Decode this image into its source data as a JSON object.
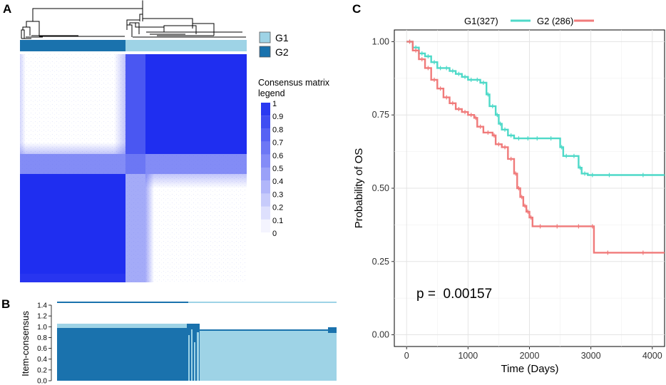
{
  "colors": {
    "g1_light": "#9ed3e6",
    "g2_dark": "#1a72ad",
    "consensus_blue": "#1f2ef0",
    "km_g1": "#4ed9c8",
    "km_g2": "#f07a7a",
    "grid": "#e4e4e4",
    "panel_bg": "#ffffff"
  },
  "panels": {
    "a": {
      "letter": "A"
    },
    "b": {
      "letter": "B"
    },
    "c": {
      "letter": "C"
    }
  },
  "heatmap": {
    "groups": [
      {
        "name": "G1",
        "color": "#9ed3e6"
      },
      {
        "name": "G2",
        "color": "#1a72ad"
      }
    ],
    "legend_title_1": "Consensus matrix",
    "legend_title_2": "legend",
    "legend_ticks": [
      "1",
      "0.9",
      "0.8",
      "0.7",
      "0.6",
      "0.5",
      "0.4",
      "0.3",
      "0.2",
      "0.1",
      "0"
    ],
    "legend_values": [
      1.0,
      0.9,
      0.8,
      0.7,
      0.6,
      0.5,
      0.4,
      0.3,
      0.2,
      0.1,
      0.0
    ],
    "order_top_to_bottom": [
      "G2",
      "G1"
    ]
  },
  "item_consensus": {
    "ylabel": "Item-consensus",
    "ticks": [
      "1.4",
      "1.2",
      "1.0",
      "0.8",
      "0.6",
      "0.4",
      "0.2",
      "0.0"
    ],
    "tick_values": [
      1.4,
      1.2,
      1.0,
      0.8,
      0.6,
      0.4,
      0.2,
      0.0
    ],
    "ylim": [
      0,
      1.4
    ]
  },
  "chart_data": {
    "type": "line",
    "title": "",
    "xlabel": "Time (Days)",
    "ylabel": "Probability of OS",
    "xlim": [
      -200,
      4200
    ],
    "ylim": [
      -0.04,
      1.04
    ],
    "x_ticks": [
      0,
      1000,
      2000,
      3000,
      4000
    ],
    "x_tick_labels": [
      "0",
      "1000",
      "2000",
      "3000",
      "4000"
    ],
    "y_ticks": [
      0.0,
      0.25,
      0.5,
      0.75,
      1.0
    ],
    "y_tick_labels": [
      "0.00",
      "0.25",
      "0.50",
      "0.75",
      "1.00"
    ],
    "annotation": "p =  0.00157",
    "legend": [
      "G1(327)",
      "G2 (286)"
    ],
    "series": [
      {
        "name": "G1(327)",
        "color": "#4ed9c8",
        "x": [
          0,
          100,
          200,
          300,
          400,
          500,
          600,
          700,
          800,
          900,
          1000,
          1100,
          1200,
          1300,
          1350,
          1450,
          1500,
          1550,
          1650,
          1750,
          1900,
          2050,
          2200,
          2500,
          2550,
          2650,
          2800,
          2850,
          2950,
          3100,
          3500,
          4200
        ],
        "y": [
          1.0,
          0.98,
          0.96,
          0.95,
          0.93,
          0.91,
          0.91,
          0.9,
          0.89,
          0.88,
          0.87,
          0.87,
          0.86,
          0.82,
          0.78,
          0.75,
          0.72,
          0.7,
          0.68,
          0.67,
          0.67,
          0.67,
          0.67,
          0.64,
          0.61,
          0.61,
          0.57,
          0.55,
          0.545,
          0.545,
          0.545,
          0.545
        ]
      },
      {
        "name": "G2 (286)",
        "color": "#f07a7a",
        "x": [
          0,
          100,
          200,
          300,
          400,
          500,
          600,
          700,
          800,
          900,
          1000,
          1100,
          1150,
          1250,
          1400,
          1450,
          1550,
          1650,
          1750,
          1800,
          1850,
          1900,
          1950,
          2000,
          2050,
          2300,
          2600,
          3000,
          3050,
          3500,
          4200
        ],
        "y": [
          1.0,
          0.97,
          0.94,
          0.91,
          0.87,
          0.84,
          0.81,
          0.79,
          0.77,
          0.76,
          0.75,
          0.74,
          0.71,
          0.69,
          0.68,
          0.65,
          0.64,
          0.6,
          0.55,
          0.5,
          0.47,
          0.44,
          0.42,
          0.4,
          0.37,
          0.37,
          0.37,
          0.37,
          0.28,
          0.28,
          0.28
        ]
      }
    ]
  }
}
